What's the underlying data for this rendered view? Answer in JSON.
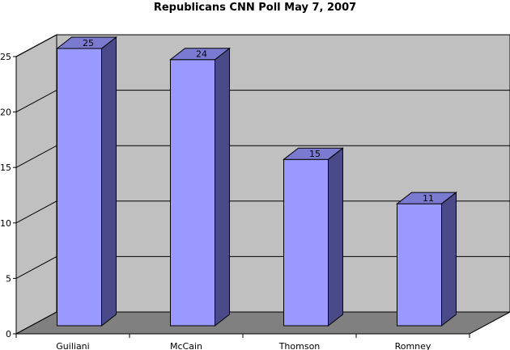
{
  "chart_data": {
    "type": "bar",
    "title": "Republicans CNN Poll May 7, 2007",
    "categories": [
      "Guiliani",
      "McCain",
      "Thomson",
      "Romney"
    ],
    "values": [
      25,
      24,
      15,
      11
    ],
    "data_labels": [
      "25",
      "24",
      "15",
      "11"
    ],
    "y_ticks": [
      "0",
      "5",
      "10",
      "15",
      "20",
      "25"
    ],
    "ylim": [
      0,
      25
    ],
    "xlabel": "",
    "ylabel": "",
    "grid": true,
    "three_d": true,
    "legend": "none",
    "colors": {
      "bar_front": "#9999ff",
      "bar_side": "#4a4a88",
      "bar_top": "#7a7ad0",
      "back_wall": "#c0c0c0",
      "side_wall": "#c0c0c0",
      "floor": "#808080",
      "outline": "#000000"
    }
  }
}
